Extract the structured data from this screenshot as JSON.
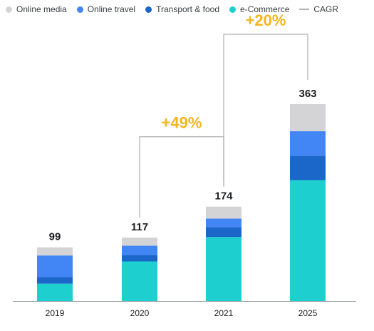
{
  "legend": [
    {
      "label": "Online media",
      "color": "#d4d4d6",
      "shape": "dot"
    },
    {
      "label": "Online travel",
      "color": "#4285f4",
      "shape": "dot"
    },
    {
      "label": "Transport & food",
      "color": "#1a66c9",
      "shape": "dot"
    },
    {
      "label": "e-Commerce",
      "color": "#1ecfcf",
      "shape": "dot"
    },
    {
      "label": "CAGR",
      "color": "#b5b5b5",
      "shape": "line"
    }
  ],
  "chart_data": {
    "type": "bar",
    "stacked": true,
    "categories": [
      "2019",
      "2020",
      "2021",
      "2025"
    ],
    "totals": [
      "99",
      "117",
      "174",
      "363"
    ],
    "series": [
      {
        "name": "e-Commerce",
        "color": "#1ecfcf",
        "values": [
          32,
          73,
          118,
          223
        ]
      },
      {
        "name": "Transport & food",
        "color": "#1a66c9",
        "values": [
          12,
          12,
          18,
          45
        ]
      },
      {
        "name": "Online travel",
        "color": "#4285f4",
        "values": [
          40,
          17,
          16,
          45
        ]
      },
      {
        "name": "Online media",
        "color": "#d4d4d6",
        "values": [
          15,
          15,
          22,
          50
        ]
      }
    ],
    "ylim": [
      0,
      363
    ],
    "grid": false,
    "legend_position": "top-left",
    "annotations": [
      {
        "label": "+49%",
        "from": "2020",
        "to": "2021",
        "color": "#f5b51e"
      },
      {
        "label": "+20%",
        "from": "2021",
        "to": "2025",
        "color": "#f5b51e"
      }
    ]
  }
}
